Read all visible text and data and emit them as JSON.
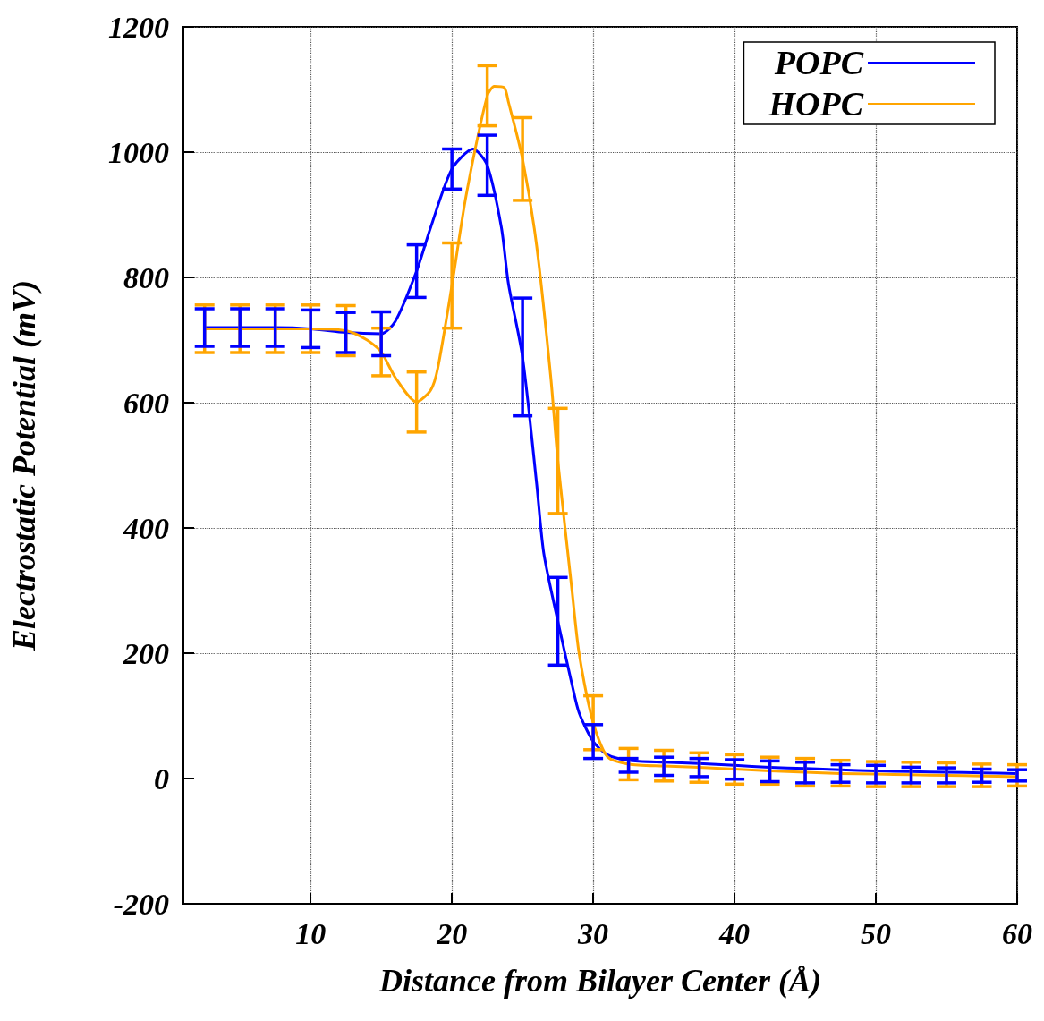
{
  "chart_data": {
    "type": "line",
    "xlabel": "Distance from Bilayer Center (Å)",
    "ylabel": "Electrostatic Potential (mV)",
    "xlim": [
      1,
      60
    ],
    "xticks": [
      10,
      20,
      30,
      40,
      50,
      60
    ],
    "ylim": [
      -200,
      1200
    ],
    "yticks": [
      -200,
      0,
      200,
      400,
      600,
      800,
      1000,
      1200
    ],
    "grid": true,
    "legend": "top right",
    "marker": "none",
    "line_style": "solid",
    "series": [
      {
        "name": "POPC",
        "color": "#0000ff",
        "x": [
          2.5,
          5,
          7.5,
          10,
          12.5,
          15,
          16,
          17.5,
          18.5,
          20,
          21.5,
          22.5,
          23.5,
          24,
          25,
          26,
          26.5,
          27.5,
          28.5,
          29,
          30,
          31,
          32.5,
          35,
          37.5,
          40,
          42.5,
          45,
          47.5,
          50,
          52.5,
          55,
          57.5,
          60
        ],
        "values": [
          720,
          720,
          720,
          718,
          712,
          710,
          730,
          810,
          880,
          973,
          1005,
          979,
          880,
          790,
          673,
          470,
          360,
          251,
          150,
          105,
          59,
          38,
          29,
          26,
          24,
          21,
          18,
          16,
          14,
          12,
          11,
          10,
          9,
          8
        ],
        "errors": [
          30,
          30,
          30,
          30,
          32,
          35,
          null,
          42,
          null,
          32,
          null,
          48,
          null,
          null,
          94,
          null,
          null,
          70,
          null,
          null,
          27,
          null,
          [
            10,
            32
          ],
          [
            5,
            34
          ],
          [
            3,
            32
          ],
          [
            -1,
            30
          ],
          [
            -5,
            28
          ],
          [
            -7,
            26
          ],
          [
            -6,
            22
          ],
          [
            -7,
            21
          ],
          [
            -7,
            18
          ],
          [
            -7,
            17
          ],
          [
            -6,
            15
          ],
          [
            -4,
            14
          ]
        ]
      },
      {
        "name": "HOPC",
        "color": "#ffa500",
        "x": [
          2.5,
          5,
          7.5,
          10,
          12.5,
          14,
          15,
          16,
          17.5,
          18.5,
          19,
          20,
          21,
          22.5,
          23,
          23.7,
          24,
          25,
          26,
          27,
          27.5,
          28.5,
          29,
          30,
          31,
          32.5,
          35,
          37.5,
          40,
          42.5,
          45,
          47.5,
          50,
          52.5,
          55,
          57.5,
          60
        ],
        "values": [
          718,
          718,
          718,
          718,
          715,
          700,
          681,
          640,
          601,
          620,
          655,
          787,
          930,
          1090,
          1105,
          1103,
          1080,
          989,
          850,
          640,
          507,
          300,
          200,
          89,
          35,
          23,
          20,
          18,
          15,
          12,
          10,
          8,
          7,
          6,
          5,
          4,
          3
        ],
        "errors": [
          38,
          38,
          38,
          38,
          40,
          null,
          38,
          null,
          48,
          null,
          null,
          68,
          null,
          48,
          null,
          null,
          null,
          66,
          null,
          null,
          84,
          null,
          null,
          43,
          null,
          [
            -2,
            48
          ],
          [
            -4,
            45
          ],
          [
            -6,
            41
          ],
          [
            -9,
            38
          ],
          [
            -9,
            34
          ],
          [
            -12,
            32
          ],
          [
            -12,
            29
          ],
          [
            -13,
            27
          ],
          [
            -13,
            26
          ],
          [
            -13,
            25
          ],
          [
            -13,
            23
          ],
          [
            -12,
            22
          ]
        ]
      }
    ]
  }
}
